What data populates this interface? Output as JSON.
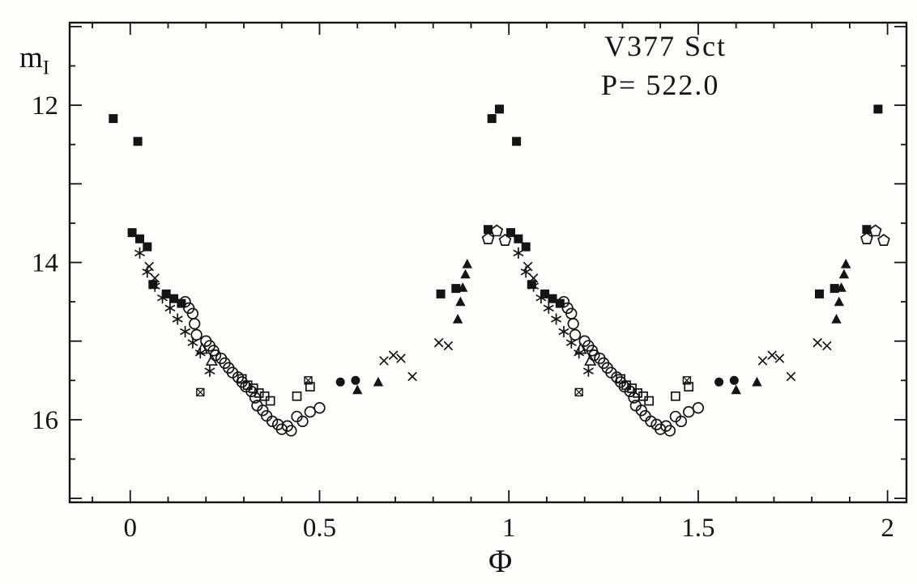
{
  "figure": {
    "bg": "#fdfdfb",
    "ink": "#141414",
    "y_label_main": "m",
    "y_label_sub": "I"
  },
  "chart_data": {
    "type": "scatter",
    "title": "V377 Sct",
    "subtitle": "P= 522.0",
    "star": "V377 Sct",
    "period_days": 522.0,
    "xlabel": "Φ",
    "ylabel": "m_I",
    "xlim": [
      -0.16,
      2.05
    ],
    "ylim": [
      10.95,
      17.05
    ],
    "y_axis_inverted_magnitudes": true,
    "grid": false,
    "legend": "none",
    "x_minor_step": 0.1,
    "y_minor_step": 0.5,
    "x_ticks": [
      {
        "v": 0,
        "label": "0"
      },
      {
        "v": 0.5,
        "label": "0.5"
      },
      {
        "v": 1,
        "label": "1"
      },
      {
        "v": 1.5,
        "label": "1.5"
      },
      {
        "v": 2,
        "label": "2"
      }
    ],
    "y_ticks": [
      {
        "v": 12,
        "label": "12"
      },
      {
        "v": 14,
        "label": "14"
      },
      {
        "v": 16,
        "label": "16"
      }
    ],
    "phase_offsets": [
      0,
      1
    ],
    "note": "Phase-folded light curve; every point is plotted at phase φ and φ+1",
    "series": [
      {
        "name": "filled-square",
        "marker": "filled-square",
        "points": [
          [
            -0.045,
            12.17
          ],
          [
            0.975,
            12.05
          ],
          [
            0.02,
            12.46
          ],
          [
            0.005,
            13.62
          ],
          [
            0.025,
            13.7
          ],
          [
            0.045,
            13.8
          ],
          [
            0.06,
            14.28
          ],
          [
            0.095,
            14.4
          ],
          [
            0.115,
            14.46
          ],
          [
            0.135,
            14.52
          ],
          [
            0.82,
            14.4
          ],
          [
            0.86,
            14.33
          ],
          [
            0.945,
            13.58
          ]
        ]
      },
      {
        "name": "open-pentagon",
        "marker": "open-pentagon",
        "points": [
          [
            0.945,
            13.7
          ],
          [
            0.968,
            13.6
          ],
          [
            0.99,
            13.72
          ]
        ]
      },
      {
        "name": "asterisk",
        "marker": "asterisk",
        "points": [
          [
            0.025,
            13.88
          ],
          [
            0.045,
            14.12
          ],
          [
            0.065,
            14.3
          ],
          [
            0.085,
            14.45
          ],
          [
            0.105,
            14.58
          ],
          [
            0.125,
            14.72
          ],
          [
            0.145,
            14.88
          ],
          [
            0.165,
            15.02
          ],
          [
            0.185,
            15.15
          ],
          [
            0.21,
            15.38
          ]
        ]
      },
      {
        "name": "cross",
        "marker": "cross",
        "points": [
          [
            0.05,
            14.05
          ],
          [
            0.065,
            14.2
          ],
          [
            0.67,
            15.25
          ],
          [
            0.695,
            15.18
          ],
          [
            0.715,
            15.22
          ],
          [
            0.745,
            15.45
          ],
          [
            0.815,
            15.02
          ],
          [
            0.84,
            15.06
          ]
        ]
      },
      {
        "name": "open-circle",
        "marker": "open-circle",
        "points": [
          [
            0.145,
            14.5
          ],
          [
            0.155,
            14.58
          ],
          [
            0.165,
            14.65
          ],
          [
            0.17,
            14.78
          ],
          [
            0.175,
            14.92
          ],
          [
            0.2,
            15.0
          ],
          [
            0.21,
            15.06
          ],
          [
            0.22,
            15.12
          ],
          [
            0.225,
            15.18
          ],
          [
            0.24,
            15.22
          ],
          [
            0.25,
            15.28
          ],
          [
            0.26,
            15.34
          ],
          [
            0.27,
            15.4
          ],
          [
            0.285,
            15.46
          ],
          [
            0.295,
            15.52
          ],
          [
            0.305,
            15.58
          ],
          [
            0.32,
            15.64
          ],
          [
            0.33,
            15.72
          ],
          [
            0.335,
            15.82
          ],
          [
            0.35,
            15.88
          ],
          [
            0.36,
            15.95
          ],
          [
            0.375,
            16.02
          ],
          [
            0.39,
            16.06
          ],
          [
            0.4,
            16.12
          ],
          [
            0.415,
            16.08
          ],
          [
            0.425,
            16.14
          ],
          [
            0.44,
            15.96
          ],
          [
            0.455,
            16.02
          ],
          [
            0.475,
            15.9
          ],
          [
            0.5,
            15.85
          ]
        ]
      },
      {
        "name": "open-square",
        "marker": "open-square",
        "points": [
          [
            0.295,
            15.48
          ],
          [
            0.31,
            15.56
          ],
          [
            0.325,
            15.6
          ],
          [
            0.34,
            15.66
          ],
          [
            0.355,
            15.7
          ],
          [
            0.37,
            15.76
          ],
          [
            0.44,
            15.7
          ],
          [
            0.475,
            15.58
          ]
        ]
      },
      {
        "name": "boxed-cross",
        "marker": "boxed-cross",
        "points": [
          [
            0.185,
            15.65
          ],
          [
            0.47,
            15.5
          ]
        ]
      },
      {
        "name": "filled-circle",
        "marker": "filled-circle",
        "points": [
          [
            0.555,
            15.52
          ],
          [
            0.595,
            15.5
          ]
        ]
      },
      {
        "name": "filled-triangle",
        "marker": "filled-triangle",
        "points": [
          [
            0.6,
            15.62
          ],
          [
            0.655,
            15.52
          ],
          [
            0.865,
            14.72
          ],
          [
            0.872,
            14.5
          ],
          [
            0.878,
            14.32
          ],
          [
            0.885,
            14.15
          ],
          [
            0.89,
            14.02
          ]
        ]
      },
      {
        "name": "open-triangle",
        "marker": "open-triangle",
        "points": [
          [
            0.19,
            15.1
          ],
          [
            0.215,
            15.25
          ]
        ]
      }
    ]
  }
}
